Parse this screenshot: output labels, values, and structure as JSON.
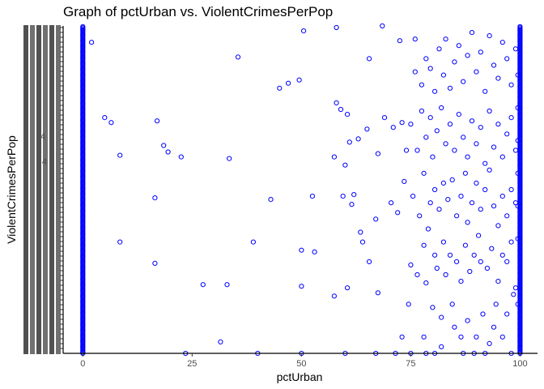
{
  "chart_data": {
    "type": "scatter",
    "title": "Graph of pctUrban vs. ViolentCrimesPerPop",
    "xlabel": "pctUrban",
    "ylabel": "ViolentCrimesPerPop",
    "xlim": [
      -4.5,
      104
    ],
    "x_ticks": [
      0,
      25,
      50,
      75,
      100
    ],
    "x_tick_labels": [
      "0",
      "25",
      "50",
      "75",
      "100"
    ],
    "y_tick_labels_visible": [
      "4",
      "4"
    ],
    "y_axis_note": "y axis is categorical with overlapping, illegible tick labels",
    "grid": false,
    "legend": "none",
    "point_color": "#0000ff",
    "points": [
      [
        2,
        0.95
      ],
      [
        35.5,
        0.905
      ],
      [
        49.5,
        0.835
      ],
      [
        47,
        0.825
      ],
      [
        45,
        0.81
      ],
      [
        50.5,
        0.985
      ],
      [
        58,
        0.995
      ],
      [
        68.5,
        1.0
      ],
      [
        65.5,
        0.9
      ],
      [
        72.5,
        0.955
      ],
      [
        76,
        0.96
      ],
      [
        5,
        0.72
      ],
      [
        6.5,
        0.705
      ],
      [
        17,
        0.71
      ],
      [
        8.5,
        0.605
      ],
      [
        18.5,
        0.635
      ],
      [
        19.5,
        0.615
      ],
      [
        22.5,
        0.6
      ],
      [
        33.5,
        0.595
      ],
      [
        57.5,
        0.6
      ],
      [
        60,
        0.575
      ],
      [
        61,
        0.645
      ],
      [
        63,
        0.655
      ],
      [
        65,
        0.685
      ],
      [
        67.5,
        0.61
      ],
      [
        59,
        0.745
      ],
      [
        60.5,
        0.73
      ],
      [
        58,
        0.765
      ],
      [
        69,
        0.72
      ],
      [
        71,
        0.69
      ],
      [
        73,
        0.705
      ],
      [
        74,
        0.62
      ],
      [
        16.5,
        0.475
      ],
      [
        43,
        0.47
      ],
      [
        52.5,
        0.48
      ],
      [
        59.5,
        0.48
      ],
      [
        61.5,
        0.455
      ],
      [
        62,
        0.485
      ],
      [
        67,
        0.41
      ],
      [
        70.5,
        0.46
      ],
      [
        72,
        0.43
      ],
      [
        73.5,
        0.525
      ],
      [
        8.5,
        0.34
      ],
      [
        16.5,
        0.275
      ],
      [
        39,
        0.34
      ],
      [
        50,
        0.315
      ],
      [
        53,
        0.31
      ],
      [
        64,
        0.34
      ],
      [
        65.5,
        0.28
      ],
      [
        63.5,
        0.37
      ],
      [
        27.5,
        0.21
      ],
      [
        33,
        0.21
      ],
      [
        50,
        0.205
      ],
      [
        57.5,
        0.175
      ],
      [
        60.5,
        0.2
      ],
      [
        67.5,
        0.185
      ],
      [
        31.5,
        0.035
      ],
      [
        23.5,
        0.0
      ],
      [
        40,
        0.0
      ],
      [
        50,
        0.0
      ],
      [
        60,
        0.0
      ],
      [
        67,
        0.0
      ],
      [
        71.5,
        0.0
      ],
      [
        73,
        0.05
      ],
      [
        75,
        0.0
      ],
      [
        78,
        0.05
      ],
      [
        78.5,
        0.0
      ],
      [
        80.5,
        0.0
      ],
      [
        82,
        0.02
      ],
      [
        74.5,
        0.15
      ],
      [
        78.5,
        0.215
      ],
      [
        80,
        0.14
      ],
      [
        82,
        0.11
      ],
      [
        84.5,
        0.15
      ],
      [
        85,
        0.08
      ],
      [
        86.5,
        0.05
      ],
      [
        87,
        0.0
      ],
      [
        88,
        0.1
      ],
      [
        89.5,
        0.0
      ],
      [
        90,
        0.05
      ],
      [
        91.5,
        0.12
      ],
      [
        92,
        0.0
      ],
      [
        93,
        0.03
      ],
      [
        94,
        0.08
      ],
      [
        94.5,
        0.15
      ],
      [
        96,
        0.05
      ],
      [
        97,
        0.12
      ],
      [
        98,
        0.0
      ],
      [
        98.5,
        0.18
      ],
      [
        75,
        0.27
      ],
      [
        76.5,
        0.24
      ],
      [
        78,
        0.33
      ],
      [
        79,
        0.38
      ],
      [
        80.5,
        0.3
      ],
      [
        81,
        0.26
      ],
      [
        82.5,
        0.34
      ],
      [
        83,
        0.24
      ],
      [
        84,
        0.3
      ],
      [
        85.5,
        0.28
      ],
      [
        86.5,
        0.22
      ],
      [
        87.5,
        0.33
      ],
      [
        88.5,
        0.25
      ],
      [
        89.5,
        0.3
      ],
      [
        90.5,
        0.36
      ],
      [
        91,
        0.28
      ],
      [
        92.5,
        0.26
      ],
      [
        93.5,
        0.32
      ],
      [
        95,
        0.22
      ],
      [
        96,
        0.3
      ],
      [
        97,
        0.28
      ],
      [
        98,
        0.34
      ],
      [
        99,
        0.2
      ],
      [
        75.5,
        0.48
      ],
      [
        77,
        0.42
      ],
      [
        78,
        0.55
      ],
      [
        79.5,
        0.46
      ],
      [
        80.5,
        0.5
      ],
      [
        81.5,
        0.44
      ],
      [
        82.5,
        0.52
      ],
      [
        83.5,
        0.47
      ],
      [
        84.5,
        0.53
      ],
      [
        85.5,
        0.42
      ],
      [
        86.5,
        0.48
      ],
      [
        87.5,
        0.55
      ],
      [
        88,
        0.4
      ],
      [
        89,
        0.46
      ],
      [
        90,
        0.52
      ],
      [
        91,
        0.44
      ],
      [
        92,
        0.5
      ],
      [
        93,
        0.56
      ],
      [
        94,
        0.45
      ],
      [
        95,
        0.39
      ],
      [
        96,
        0.48
      ],
      [
        97,
        0.42
      ],
      [
        98,
        0.5
      ],
      [
        99,
        0.46
      ],
      [
        75,
        0.7
      ],
      [
        76.5,
        0.62
      ],
      [
        77.5,
        0.74
      ],
      [
        78.5,
        0.66
      ],
      [
        79.5,
        0.72
      ],
      [
        80,
        0.6
      ],
      [
        81,
        0.68
      ],
      [
        82,
        0.75
      ],
      [
        83,
        0.64
      ],
      [
        84,
        0.7
      ],
      [
        85,
        0.62
      ],
      [
        86,
        0.73
      ],
      [
        87,
        0.66
      ],
      [
        88,
        0.6
      ],
      [
        89,
        0.71
      ],
      [
        90,
        0.64
      ],
      [
        91,
        0.69
      ],
      [
        92,
        0.58
      ],
      [
        93,
        0.74
      ],
      [
        94,
        0.63
      ],
      [
        95,
        0.7
      ],
      [
        96,
        0.6
      ],
      [
        97,
        0.67
      ],
      [
        98,
        0.72
      ],
      [
        99,
        0.62
      ],
      [
        76,
        0.86
      ],
      [
        77.5,
        0.82
      ],
      [
        78.5,
        0.9
      ],
      [
        79.5,
        0.87
      ],
      [
        80.5,
        0.8
      ],
      [
        81.5,
        0.93
      ],
      [
        82.5,
        0.85
      ],
      [
        83,
        0.96
      ],
      [
        84,
        0.81
      ],
      [
        85,
        0.89
      ],
      [
        86,
        0.94
      ],
      [
        87,
        0.83
      ],
      [
        88,
        0.91
      ],
      [
        89,
        0.98
      ],
      [
        90,
        0.86
      ],
      [
        91,
        0.92
      ],
      [
        92,
        0.8
      ],
      [
        93,
        0.97
      ],
      [
        94,
        0.88
      ],
      [
        95,
        0.84
      ],
      [
        96,
        0.95
      ],
      [
        97,
        0.9
      ],
      [
        98,
        0.82
      ],
      [
        99,
        0.93
      ],
      [
        99.5,
        0.75
      ],
      [
        99.5,
        0.55
      ],
      [
        99.5,
        0.35
      ],
      [
        99.5,
        0.15
      ],
      [
        99.5,
        0.85
      ],
      [
        99.5,
        0.65
      ],
      [
        99.5,
        0.45
      ]
    ],
    "dense_columns": [
      {
        "x": 0,
        "y_range": [
          0,
          1
        ]
      },
      {
        "x": 100,
        "y_range": [
          0,
          1
        ]
      }
    ]
  }
}
